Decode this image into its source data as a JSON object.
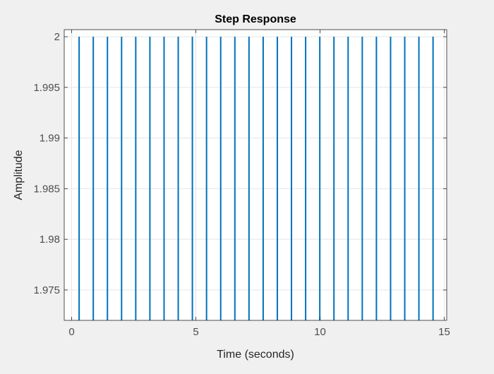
{
  "chart_data": {
    "type": "line",
    "title": "Step Response",
    "xlabel": "Time (seconds)",
    "ylabel": "Amplitude",
    "xlim": [
      -0.3,
      15.1
    ],
    "ylim": [
      1.972,
      2.0007
    ],
    "xticks": [
      0,
      5,
      10,
      15
    ],
    "xtick_labels": [
      "0",
      "5",
      "10",
      "15"
    ],
    "yticks": [
      1.975,
      1.98,
      1.985,
      1.99,
      1.995,
      2
    ],
    "ytick_labels": [
      "1.975",
      "1.98",
      "1.985",
      "1.99",
      "1.995",
      "2"
    ],
    "grid": true,
    "line_color": "#0072bd",
    "series": [
      {
        "period": 0.57,
        "first_spike_time": 0.3,
        "spike_count": 27,
        "high_value": 2.0,
        "low_value": 1.972
      }
    ]
  },
  "colors": {
    "figure_bg": "#f0f0f0",
    "axes_bg": "#ffffff",
    "axis_color": "#262626",
    "grid_color": "#e5e5e5",
    "tick_label_color": "#4d4d4d"
  }
}
